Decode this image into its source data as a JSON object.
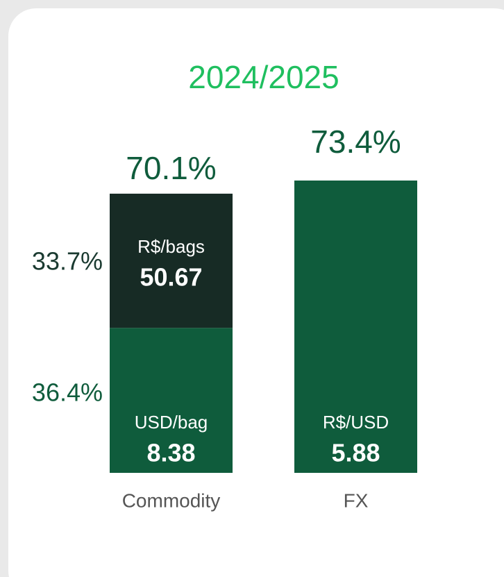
{
  "chart_data": {
    "type": "stacked_bar",
    "title": "2024/2025",
    "categories": [
      "Commodity",
      "FX"
    ],
    "series": [
      {
        "color": "#0f5c3c",
        "values": [
          36.4,
          73.4
        ],
        "value_labels": [
          "36.4%",
          "73.4%"
        ],
        "units": [
          "USD/bag",
          "R$/USD"
        ],
        "unit_values": [
          8.38,
          5.88
        ]
      },
      {
        "color": "#172b25",
        "values": [
          33.7,
          null
        ],
        "value_labels": [
          "33.7%",
          null
        ],
        "units": [
          "R$/bags",
          null
        ],
        "unit_values": [
          50.67,
          null
        ]
      }
    ],
    "totals": [
      70.1,
      null
    ],
    "total_labels": [
      "70.1%",
      null
    ]
  }
}
